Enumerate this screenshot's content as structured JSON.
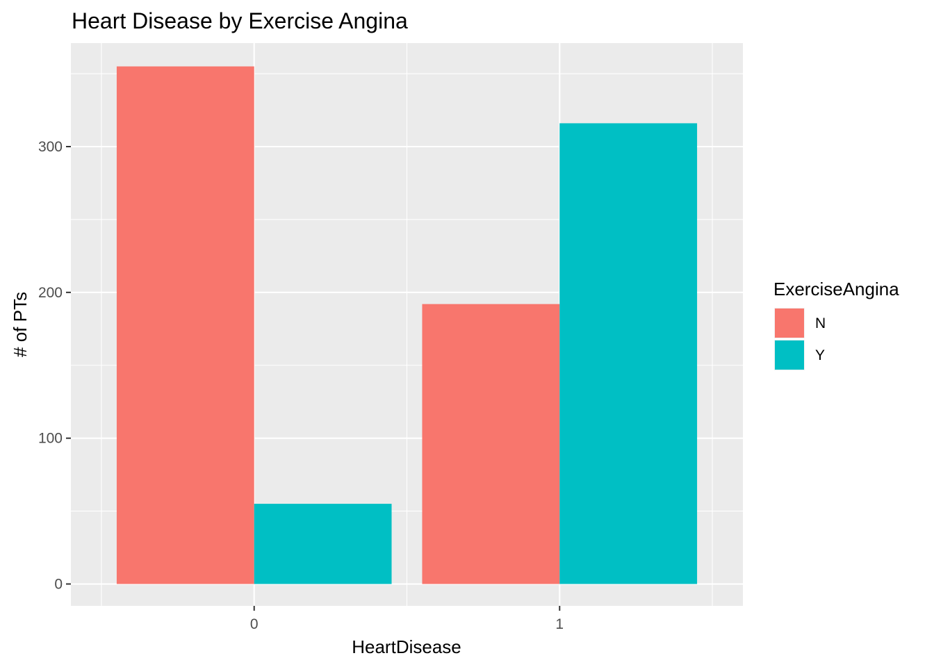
{
  "chart_data": {
    "type": "bar",
    "title": "Heart Disease by Exercise Angina",
    "xlabel": "HeartDisease",
    "ylabel": "# of PTs",
    "categories": [
      "0",
      "1"
    ],
    "series": [
      {
        "name": "N",
        "values": [
          355,
          192
        ],
        "color": "#F8766D"
      },
      {
        "name": "Y",
        "values": [
          55,
          316
        ],
        "color": "#00BFC4"
      }
    ],
    "ylim": [
      -15,
      371
    ],
    "yticks": [
      0,
      100,
      200,
      300
    ],
    "legend": {
      "title": "ExerciseAngina",
      "position": "right"
    },
    "grid": true,
    "panel_background": "#EBEBEB",
    "grid_color": "#FFFFFF"
  }
}
